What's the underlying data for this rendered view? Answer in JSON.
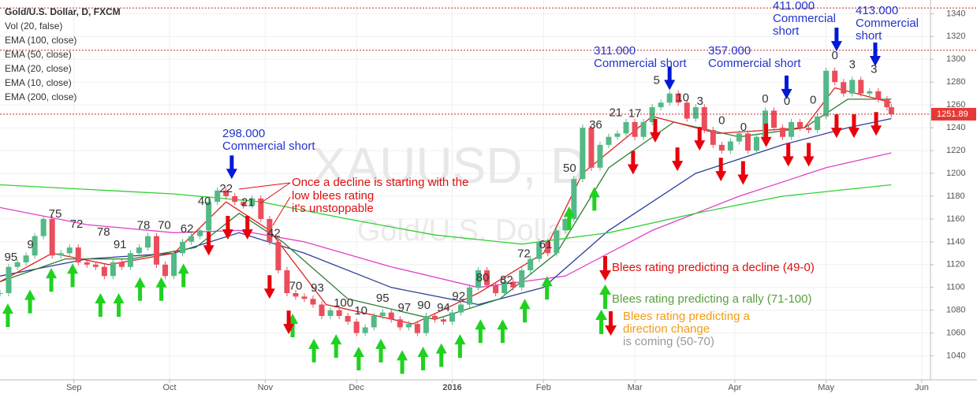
{
  "chart_data": {
    "type": "candlestick",
    "title": "Gold/U.S. Dollar, D, FXCM",
    "volume_label": "Vol (20, false)",
    "watermark": {
      "symbol": "XAUUSD, D",
      "name": "Gold/U.S. Dollar"
    },
    "ylim": [
      1019,
      1352
    ],
    "yticks": [
      1040,
      1060,
      1080,
      1100,
      1120,
      1140,
      1160,
      1180,
      1200,
      1220,
      1240,
      1260,
      1280,
      1300,
      1320,
      1340
    ],
    "xlim": [
      0,
      214
    ],
    "xticks": [
      {
        "value": 17,
        "label": "Sep"
      },
      {
        "value": 39,
        "label": "Oct"
      },
      {
        "value": 61,
        "label": "Nov"
      },
      {
        "value": 82,
        "label": "Dec"
      },
      {
        "value": 104,
        "label": "2016"
      },
      {
        "value": 125,
        "label": "Feb"
      },
      {
        "value": 146,
        "label": "Mar"
      },
      {
        "value": 169,
        "label": "Apr"
      },
      {
        "value": 190,
        "label": "May"
      },
      {
        "value": 212,
        "label": "Jun"
      }
    ],
    "grid": true,
    "up_color": "#53b987",
    "down_color": "#eb4d5c",
    "levels": [
      1345,
      1308
    ],
    "candles": {
      "x": [
        0,
        2,
        4,
        6,
        8,
        10,
        12,
        14,
        16,
        18,
        20,
        22,
        24,
        26,
        28,
        30,
        32,
        34,
        36,
        38,
        40,
        42,
        44,
        46,
        48,
        50,
        52,
        54,
        56,
        58,
        60,
        62,
        64,
        66,
        68,
        70,
        72,
        74,
        76,
        78,
        80,
        82,
        84,
        86,
        88,
        90,
        92,
        94,
        96,
        98,
        100,
        102,
        104,
        106,
        108,
        110,
        112,
        114,
        116,
        118,
        120,
        122,
        124,
        126,
        128,
        130,
        132,
        134,
        136,
        138,
        140,
        142,
        144,
        146,
        148,
        150,
        152,
        154,
        156,
        158,
        160,
        162,
        164,
        166,
        168,
        170,
        172,
        174,
        176,
        178,
        180,
        182,
        184,
        186,
        188,
        190,
        192,
        194,
        196,
        198,
        200,
        202,
        204,
        205
      ],
      "close": [
        1095,
        1118,
        1122,
        1128,
        1145,
        1160,
        1128,
        1130,
        1135,
        1122,
        1120,
        1118,
        1110,
        1122,
        1118,
        1130,
        1135,
        1145,
        1120,
        1110,
        1130,
        1140,
        1145,
        1150,
        1175,
        1185,
        1180,
        1175,
        1172,
        1178,
        1160,
        1140,
        1115,
        1095,
        1092,
        1090,
        1085,
        1075,
        1080,
        1075,
        1070,
        1060,
        1065,
        1075,
        1078,
        1072,
        1065,
        1068,
        1060,
        1075,
        1072,
        1070,
        1078,
        1085,
        1100,
        1115,
        1102,
        1095,
        1105,
        1100,
        1115,
        1125,
        1140,
        1130,
        1150,
        1160,
        1195,
        1240,
        1205,
        1225,
        1232,
        1235,
        1245,
        1232,
        1245,
        1258,
        1262,
        1270,
        1262,
        1248,
        1258,
        1238,
        1225,
        1220,
        1228,
        1235,
        1220,
        1232,
        1255,
        1240,
        1232,
        1245,
        1240,
        1238,
        1250,
        1290,
        1280,
        1270,
        1282,
        1270,
        1272,
        1265,
        1258,
        1251.89
      ]
    },
    "series": [
      {
        "name": "EMA (100, close)",
        "color": "#e040c8",
        "x": [
          0,
          20,
          40,
          55,
          70,
          90,
          110,
          130,
          150,
          170,
          190,
          205
        ],
        "values": [
          1170,
          1155,
          1148,
          1150,
          1140,
          1118,
          1100,
          1110,
          1150,
          1180,
          1205,
          1218
        ]
      },
      {
        "name": "EMA (50, close)",
        "color": "#2c3e9a",
        "x": [
          0,
          20,
          40,
          55,
          70,
          90,
          110,
          125,
          140,
          160,
          180,
          195,
          205
        ],
        "values": [
          1110,
          1125,
          1130,
          1148,
          1130,
          1100,
          1085,
          1100,
          1150,
          1200,
          1225,
          1240,
          1248
        ]
      },
      {
        "name": "EMA (20, close)",
        "color": "#2e7d32",
        "x": [
          0,
          15,
          30,
          45,
          55,
          65,
          80,
          100,
          115,
          128,
          140,
          155,
          170,
          185,
          195,
          205
        ],
        "values": [
          1105,
          1125,
          1125,
          1135,
          1165,
          1140,
          1090,
          1072,
          1090,
          1130,
          1205,
          1245,
          1232,
          1240,
          1265,
          1265
        ]
      },
      {
        "name": "EMA (10, close)",
        "color": "#e02020",
        "x": [
          0,
          12,
          25,
          40,
          52,
          62,
          75,
          95,
          110,
          125,
          134,
          150,
          165,
          185,
          192,
          205
        ],
        "values": [
          1105,
          1130,
          1120,
          1130,
          1175,
          1150,
          1085,
          1068,
          1095,
          1130,
          1200,
          1250,
          1235,
          1240,
          1275,
          1262
        ]
      },
      {
        "name": "EMA (200, close)",
        "color": "#30d030",
        "x": [
          0,
          40,
          60,
          80,
          100,
          120,
          140,
          160,
          180,
          205
        ],
        "values": [
          1190,
          1182,
          1175,
          1160,
          1146,
          1138,
          1148,
          1165,
          1180,
          1190
        ]
      }
    ],
    "ratings": [
      {
        "label": "95",
        "x": 2.5,
        "price": 1126
      },
      {
        "label": "9",
        "x": 7,
        "price": 1137
      },
      {
        "label": "75",
        "x": 12.7,
        "price": 1164
      },
      {
        "label": "72",
        "x": 17.6,
        "price": 1155
      },
      {
        "label": "78",
        "x": 23.8,
        "price": 1148
      },
      {
        "label": "91",
        "x": 27.6,
        "price": 1137
      },
      {
        "label": "78",
        "x": 33,
        "price": 1154
      },
      {
        "label": "70",
        "x": 37.8,
        "price": 1154
      },
      {
        "label": "62",
        "x": 43,
        "price": 1151
      },
      {
        "label": "40",
        "x": 47,
        "price": 1175
      },
      {
        "label": "22",
        "x": 52,
        "price": 1186
      },
      {
        "label": "21",
        "x": 57,
        "price": 1174
      },
      {
        "label": "42",
        "x": 63,
        "price": 1147
      },
      {
        "label": "70",
        "x": 68,
        "price": 1101
      },
      {
        "label": "93",
        "x": 73,
        "price": 1099
      },
      {
        "label": "100",
        "x": 79,
        "price": 1086
      },
      {
        "label": "10",
        "x": 83,
        "price": 1079
      },
      {
        "label": "95",
        "x": 88,
        "price": 1090
      },
      {
        "label": "97",
        "x": 93,
        "price": 1082
      },
      {
        "label": "90",
        "x": 97.5,
        "price": 1084
      },
      {
        "label": "94",
        "x": 102,
        "price": 1082
      },
      {
        "label": "92",
        "x": 105.5,
        "price": 1092
      },
      {
        "label": "80",
        "x": 111,
        "price": 1108
      },
      {
        "label": "82",
        "x": 116.5,
        "price": 1106
      },
      {
        "label": "72",
        "x": 120.5,
        "price": 1129
      },
      {
        "label": "61",
        "x": 125.5,
        "price": 1137
      },
      {
        "label": "50",
        "x": 131,
        "price": 1204
      },
      {
        "label": "36",
        "x": 137,
        "price": 1242
      },
      {
        "label": "21",
        "x": 141.6,
        "price": 1253
      },
      {
        "label": "17",
        "x": 146,
        "price": 1252
      },
      {
        "label": "5",
        "x": 151,
        "price": 1281
      },
      {
        "label": "10",
        "x": 157,
        "price": 1266
      },
      {
        "label": "3",
        "x": 161,
        "price": 1263
      },
      {
        "label": "0",
        "x": 166,
        "price": 1246
      },
      {
        "label": "0",
        "x": 171,
        "price": 1240
      },
      {
        "label": "0",
        "x": 176,
        "price": 1265
      },
      {
        "label": "0",
        "x": 181,
        "price": 1263
      },
      {
        "label": "0",
        "x": 187,
        "price": 1264
      },
      {
        "label": "0",
        "x": 192,
        "price": 1303
      },
      {
        "label": "3",
        "x": 196,
        "price": 1295
      },
      {
        "label": "3",
        "x": 201,
        "price": 1291
      }
    ],
    "up_arrows": [
      {
        "x": 1.8,
        "price": 1086
      },
      {
        "x": 6.9,
        "price": 1098
      },
      {
        "x": 11.8,
        "price": 1117
      },
      {
        "x": 16.7,
        "price": 1121
      },
      {
        "x": 23.1,
        "price": 1095
      },
      {
        "x": 27.3,
        "price": 1095
      },
      {
        "x": 32.2,
        "price": 1109
      },
      {
        "x": 37.1,
        "price": 1109
      },
      {
        "x": 42.2,
        "price": 1121
      },
      {
        "x": 67.3,
        "price": 1077
      },
      {
        "x": 72.2,
        "price": 1055
      },
      {
        "x": 77.3,
        "price": 1059
      },
      {
        "x": 82.5,
        "price": 1048
      },
      {
        "x": 87.6,
        "price": 1055
      },
      {
        "x": 92.5,
        "price": 1045
      },
      {
        "x": 97.3,
        "price": 1048
      },
      {
        "x": 101.5,
        "price": 1051
      },
      {
        "x": 105.8,
        "price": 1059
      },
      {
        "x": 110.5,
        "price": 1072
      },
      {
        "x": 115.6,
        "price": 1072
      },
      {
        "x": 120.7,
        "price": 1090
      },
      {
        "x": 125.8,
        "price": 1110
      },
      {
        "x": 130.9,
        "price": 1171
      },
      {
        "x": 136.7,
        "price": 1188
      }
    ],
    "down_arrows": [
      {
        "x": 48,
        "price": 1128
      },
      {
        "x": 52.4,
        "price": 1142
      },
      {
        "x": 56.9,
        "price": 1142
      },
      {
        "x": 62,
        "price": 1090
      },
      {
        "x": 66.4,
        "price": 1059
      },
      {
        "x": 145.6,
        "price": 1199
      },
      {
        "x": 150.7,
        "price": 1227
      },
      {
        "x": 155.8,
        "price": 1202
      },
      {
        "x": 160.9,
        "price": 1220
      },
      {
        "x": 165.8,
        "price": 1193
      },
      {
        "x": 170.9,
        "price": 1190
      },
      {
        "x": 176.2,
        "price": 1223
      },
      {
        "x": 181.3,
        "price": 1206
      },
      {
        "x": 186,
        "price": 1206
      },
      {
        "x": 192.4,
        "price": 1231
      },
      {
        "x": 196.4,
        "price": 1231
      },
      {
        "x": 201.5,
        "price": 1233
      }
    ],
    "short_arrows": [
      {
        "x": 53.3,
        "price": 1195
      },
      {
        "x": 154,
        "price": 1273
      },
      {
        "x": 180.9,
        "price": 1265
      },
      {
        "x": 192.4,
        "price": 1307
      },
      {
        "x": 201.3,
        "price": 1294
      }
    ],
    "commercial_shorts": [
      {
        "lines": [
          "298.000",
          "Commercial short"
        ]
      },
      {
        "lines": [
          "311.000",
          "Commercial short"
        ]
      },
      {
        "lines": [
          "357.000",
          "Commercial short"
        ]
      },
      {
        "lines": [
          "411.000",
          "Commercial",
          "short"
        ]
      },
      {
        "lines": [
          "413.000",
          "Commercial",
          "short"
        ]
      }
    ],
    "note": [
      "Once a decline is starting with the",
      "low blees rating",
      "it's unstoppable"
    ],
    "legend": {
      "decline": "Blees rating predicting a decline (49-0)",
      "rally": "Blees rating predicting a rally (71-100)",
      "change": [
        "Blees rating predicting a",
        "direction change",
        "is coming (50-70)"
      ]
    }
  }
}
